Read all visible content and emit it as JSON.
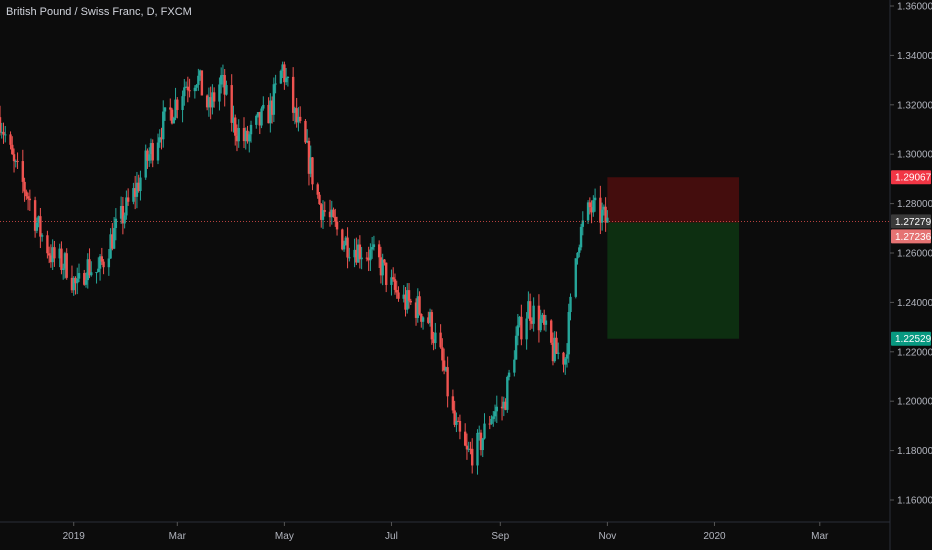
{
  "header": {
    "symbol_title": "British Pound / Swiss Franc, D, FXCM"
  },
  "colors": {
    "background": "#0c0c0c",
    "bull": "#26a69a",
    "bear": "#ef5350",
    "stop_zone": "#4a0d0d",
    "target_zone": "#0d3312",
    "stop_tag": "#f23645",
    "target_tag": "#089981",
    "current_tag": "#3a3a3a",
    "entry_tag": "#e57373"
  },
  "chart_data": {
    "type": "candlestick",
    "title": "British Pound / Swiss Franc, D, FXCM",
    "y_axis": {
      "min": 1.15,
      "max": 1.365,
      "ticks": [
        "1.36000",
        "1.34000",
        "1.32000",
        "1.30000",
        "1.28000",
        "1.26000",
        "1.24000",
        "1.22000",
        "1.20000",
        "1.18000",
        "1.16000"
      ],
      "tick_values": [
        1.36,
        1.34,
        1.32,
        1.3,
        1.28,
        1.26,
        1.24,
        1.22,
        1.2,
        1.18,
        1.16
      ]
    },
    "x_axis": {
      "labels": [
        "2019",
        "Mar",
        "May",
        "Jul",
        "Sep",
        "Nov",
        "2020",
        "Mar"
      ],
      "label_dates": [
        "2019-01-01",
        "2019-03-01",
        "2019-05-01",
        "2019-07-01",
        "2019-09-01",
        "2019-11-01",
        "2020-01-01",
        "2020-03-01"
      ],
      "start_date": "2018-11-20",
      "end_date": "2020-04-10"
    },
    "price_path": [
      [
        "2018-11-20",
        1.315
      ],
      [
        "2018-11-28",
        1.295
      ],
      [
        "2018-12-05",
        1.285
      ],
      [
        "2018-12-12",
        1.27
      ],
      [
        "2018-12-20",
        1.258
      ],
      [
        "2018-12-28",
        1.255
      ],
      [
        "2019-01-03",
        1.245
      ],
      [
        "2019-01-08",
        1.255
      ],
      [
        "2019-01-15",
        1.252
      ],
      [
        "2019-01-22",
        1.265
      ],
      [
        "2019-01-29",
        1.275
      ],
      [
        "2019-02-05",
        1.285
      ],
      [
        "2019-02-12",
        1.298
      ],
      [
        "2019-02-19",
        1.31
      ],
      [
        "2019-02-26",
        1.318
      ],
      [
        "2019-03-05",
        1.328
      ],
      [
        "2019-03-12",
        1.332
      ],
      [
        "2019-03-19",
        1.318
      ],
      [
        "2019-03-26",
        1.33
      ],
      [
        "2019-04-02",
        1.312
      ],
      [
        "2019-04-09",
        1.305
      ],
      [
        "2019-04-16",
        1.312
      ],
      [
        "2019-04-23",
        1.318
      ],
      [
        "2019-04-30",
        1.335
      ],
      [
        "2019-05-07",
        1.315
      ],
      [
        "2019-05-14",
        1.3
      ],
      [
        "2019-05-21",
        1.28
      ],
      [
        "2019-05-28",
        1.272
      ],
      [
        "2019-06-04",
        1.265
      ],
      [
        "2019-06-11",
        1.262
      ],
      [
        "2019-06-18",
        1.26
      ],
      [
        "2019-06-25",
        1.255
      ],
      [
        "2019-07-02",
        1.245
      ],
      [
        "2019-07-09",
        1.24
      ],
      [
        "2019-07-16",
        1.238
      ],
      [
        "2019-07-23",
        1.232
      ],
      [
        "2019-07-30",
        1.215
      ],
      [
        "2019-08-06",
        1.19
      ],
      [
        "2019-08-13",
        1.178
      ],
      [
        "2019-08-20",
        1.182
      ],
      [
        "2019-08-27",
        1.195
      ],
      [
        "2019-09-03",
        1.198
      ],
      [
        "2019-09-10",
        1.225
      ],
      [
        "2019-09-17",
        1.238
      ],
      [
        "2019-09-24",
        1.232
      ],
      [
        "2019-10-01",
        1.22
      ],
      [
        "2019-10-08",
        1.218
      ],
      [
        "2019-10-15",
        1.265
      ],
      [
        "2019-10-22",
        1.278
      ],
      [
        "2019-10-29",
        1.275
      ],
      [
        "2019-11-01",
        1.272
      ]
    ],
    "position": {
      "stop_loss": 1.29067,
      "entry": 1.27236,
      "take_profit": 1.22529,
      "current_price": 1.27279,
      "start_date": "2019-11-01",
      "end_date": "2020-01-15"
    },
    "price_tags": {
      "stop_loss": "1.29067",
      "current": "1.27279",
      "entry": "1.27236",
      "take_profit": "1.22529"
    }
  }
}
